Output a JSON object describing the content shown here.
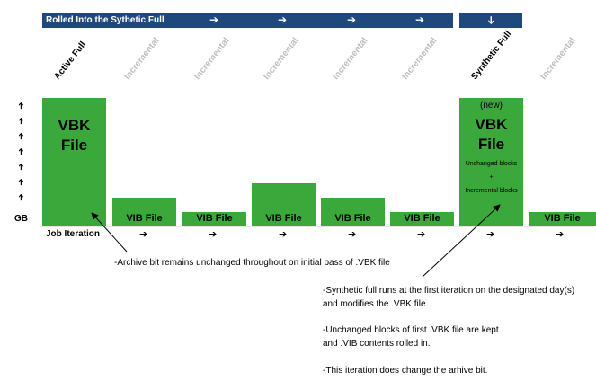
{
  "banner_left": {
    "label": "Rolled Into the Sythetic Full",
    "arrow": "➔"
  },
  "banner_right": {
    "arrow": "➔"
  },
  "columns": [
    {
      "label": "Active Full",
      "style": "active"
    },
    {
      "label": "Incremental",
      "style": "inc"
    },
    {
      "label": "Incremental",
      "style": "inc"
    },
    {
      "label": "Incremental",
      "style": "inc"
    },
    {
      "label": "Incremental",
      "style": "inc"
    },
    {
      "label": "Incremental",
      "style": "inc"
    },
    {
      "label": "Synthetic Full",
      "style": "active"
    },
    {
      "label": "Incremental",
      "style": "inc"
    }
  ],
  "bars": {
    "vbk_main_line1": "VBK",
    "vbk_main_line2": "File",
    "vib_label": "VIB File",
    "synth_new": "(new)",
    "synth_line1": "VBK",
    "synth_line2": "File",
    "synth_unchanged": "Unchanged blocks",
    "synth_plus": "+",
    "synth_incremental": "Incremental blocks"
  },
  "axis": {
    "y_arrow": "➔",
    "y_label": "GB",
    "x_label": "Job Iteration",
    "x_arrow": "➔"
  },
  "notes": {
    "archive_bit": "-Archive bit remains unchanged throughout on initial pass of .VBK file",
    "synth_line1": "-Synthetic full runs at the first iteration on the designated day(s)",
    "synth_line2": "and modifies the .VBK file.",
    "unchanged_line1": "-Unchanged blocks of first .VBK file are kept",
    "unchanged_line2": "and  .VIB contents rolled in.",
    "iteration_line": "-This iteration does change the arhive bit."
  },
  "colors": {
    "banner": "#1f497d",
    "bar": "#3aa83a",
    "incremental_label": "#bfbfbf"
  }
}
